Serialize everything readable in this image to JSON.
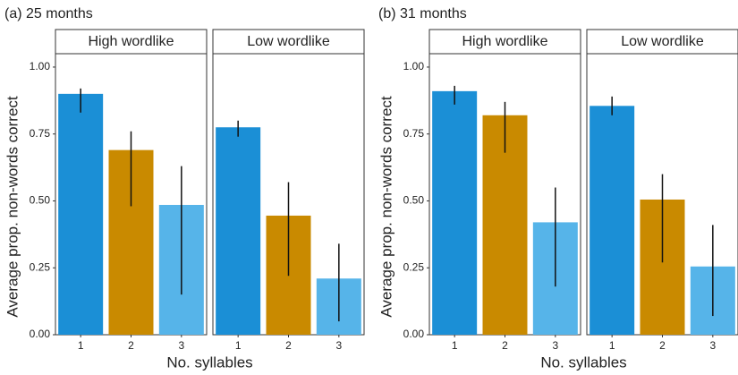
{
  "chart_data": [
    {
      "type": "bar",
      "title": "(a) 25 months",
      "xlabel": "No. syllables",
      "ylabel": "Average prop. non-words correct",
      "ylim": [
        0,
        1.05
      ],
      "yticks": [
        {
          "value": 0,
          "label": "0.00"
        },
        {
          "value": 0.25,
          "label": "0.25"
        },
        {
          "value": 0.5,
          "label": "0.50"
        },
        {
          "value": 0.75,
          "label": "0.75"
        },
        {
          "value": 1,
          "label": "1.00"
        }
      ],
      "facets": [
        {
          "title": "High wordlike",
          "categories": [
            "1",
            "2",
            "3"
          ],
          "values": [
            0.9,
            0.69,
            0.485
          ],
          "colors": [
            "#1b8fd6",
            "#c98a00",
            "#56b4e9"
          ],
          "ranges": [
            [
              0.83,
              0.92
            ],
            [
              0.48,
              0.76
            ],
            [
              0.15,
              0.63
            ]
          ]
        },
        {
          "title": "Low wordlike",
          "categories": [
            "1",
            "2",
            "3"
          ],
          "values": [
            0.775,
            0.445,
            0.21
          ],
          "colors": [
            "#1b8fd6",
            "#c98a00",
            "#56b4e9"
          ],
          "ranges": [
            [
              0.74,
              0.8
            ],
            [
              0.22,
              0.57
            ],
            [
              0.05,
              0.34
            ]
          ]
        }
      ]
    },
    {
      "type": "bar",
      "title": "(b) 31 months",
      "xlabel": "No. syllables",
      "ylabel": "Average prop. non-words correct",
      "ylim": [
        0,
        1.05
      ],
      "yticks": [
        {
          "value": 0,
          "label": "0.00"
        },
        {
          "value": 0.25,
          "label": "0.25"
        },
        {
          "value": 0.5,
          "label": "0.50"
        },
        {
          "value": 0.75,
          "label": "0.75"
        },
        {
          "value": 1,
          "label": "1.00"
        }
      ],
      "facets": [
        {
          "title": "High wordlike",
          "categories": [
            "1",
            "2",
            "3"
          ],
          "values": [
            0.91,
            0.82,
            0.42
          ],
          "colors": [
            "#1b8fd6",
            "#c98a00",
            "#56b4e9"
          ],
          "ranges": [
            [
              0.86,
              0.93
            ],
            [
              0.68,
              0.87
            ],
            [
              0.18,
              0.55
            ]
          ]
        },
        {
          "title": "Low wordlike",
          "categories": [
            "1",
            "2",
            "3"
          ],
          "values": [
            0.855,
            0.505,
            0.255
          ],
          "colors": [
            "#1b8fd6",
            "#c98a00",
            "#56b4e9"
          ],
          "ranges": [
            [
              0.82,
              0.89
            ],
            [
              0.27,
              0.6
            ],
            [
              0.07,
              0.41
            ]
          ]
        }
      ]
    }
  ]
}
